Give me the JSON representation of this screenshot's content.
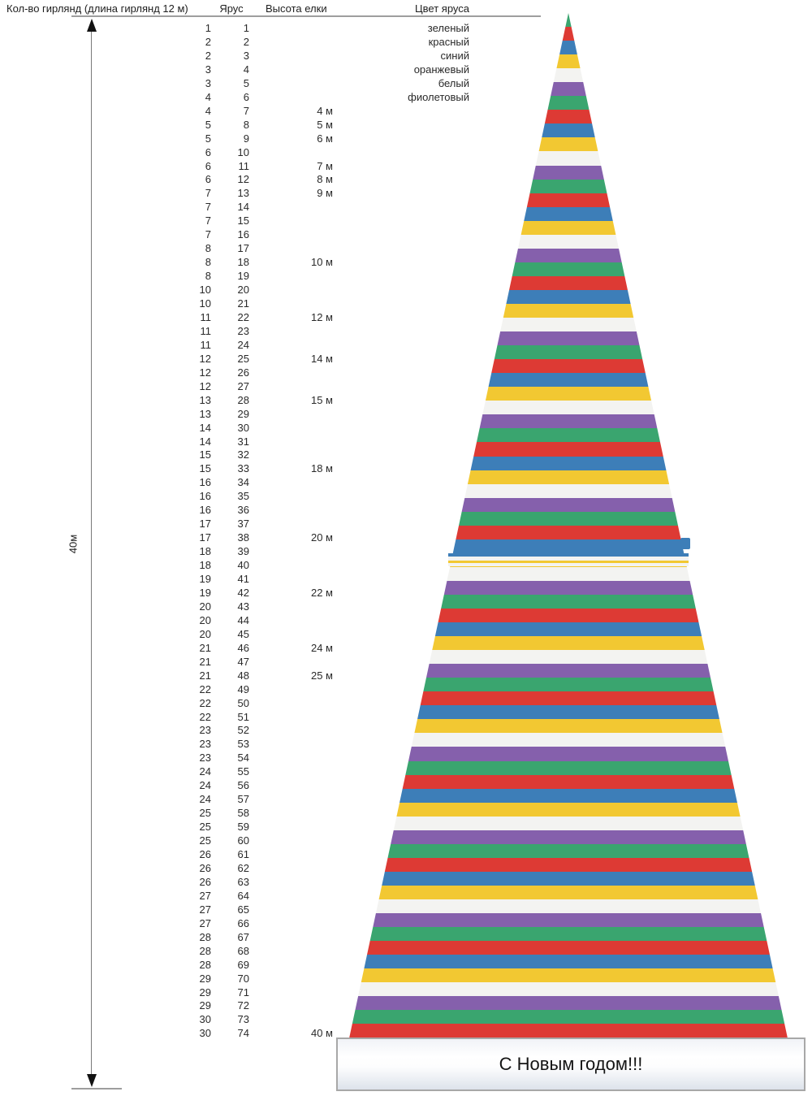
{
  "header": {
    "col_garlands": "Кол-во гирлянд (длина гирлянд 12 м)",
    "col_tier": "Ярус",
    "col_height": "Высота елки",
    "col_color": "Цвет яруса"
  },
  "dimension_label": "40м",
  "banner_text": "С Новым годом!!!",
  "tiers": 74,
  "colors": {
    "green": "#3AA56F",
    "red": "#DD3A34",
    "blue": "#3D7EB8",
    "orange": "#F2C832",
    "white": "#F3F3F1",
    "purple": "#8560AC"
  },
  "color_cycle": [
    "green",
    "red",
    "blue",
    "orange",
    "white",
    "purple"
  ],
  "color_names": [
    "зеленый",
    "красный",
    "синий",
    "оранжевый",
    "белый",
    "фиолетовый"
  ],
  "garlands_per_tier": [
    1,
    2,
    2,
    3,
    3,
    4,
    4,
    5,
    5,
    6,
    6,
    6,
    7,
    7,
    7,
    7,
    8,
    8,
    8,
    10,
    10,
    11,
    11,
    11,
    12,
    12,
    12,
    13,
    13,
    14,
    14,
    15,
    15,
    16,
    16,
    16,
    17,
    17,
    18,
    18,
    19,
    19,
    20,
    20,
    20,
    21,
    21,
    21,
    22,
    22,
    22,
    23,
    23,
    23,
    24,
    24,
    24,
    25,
    25,
    25,
    26,
    26,
    26,
    27,
    27,
    27,
    28,
    28,
    28,
    29,
    29,
    29,
    30,
    30
  ],
  "height_labels": {
    "7": "4 м",
    "8": "5 м",
    "9": "6 м",
    "11": "7 м",
    "12": "8 м",
    "13": "9 м",
    "18": "10 м",
    "22": "12 м",
    "25": "14 м",
    "28": "15 м",
    "33": "18 м",
    "38": "20 м",
    "42": "22 м",
    "46": "24 м",
    "48": "25 м",
    "74": "40 м"
  }
}
